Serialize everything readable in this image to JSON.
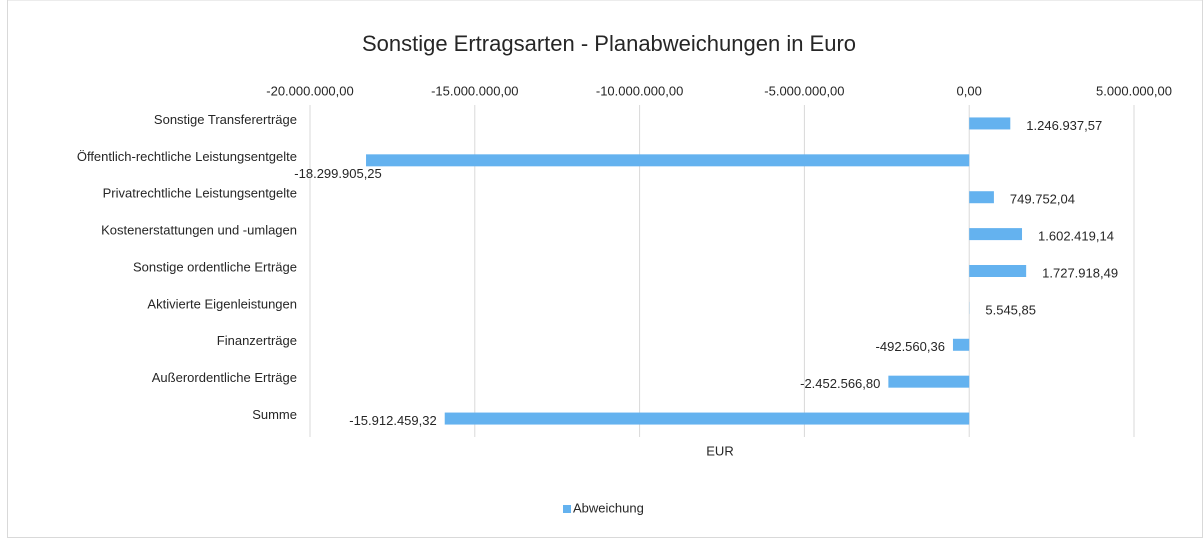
{
  "chart_data": {
    "type": "bar",
    "orientation": "horizontal",
    "title": "Sonstige Ertragsarten - Planabweichungen in Euro",
    "x_label": "EUR",
    "categories": [
      "Sonstige Transfererträge",
      "Öffentlich-rechtliche Leistungsentgelte",
      "Privatrechtliche Leistungsentgelte",
      "Kostenerstattungen und -umlagen",
      "Sonstige ordentliche Erträge",
      "Aktivierte Eigenleistungen",
      "Finanzerträge",
      "Außerordentliche Erträge",
      "Summe"
    ],
    "series": [
      {
        "name": "Abweichung",
        "color": "#64b2ef",
        "values": [
          1246937.57,
          -18299905.25,
          749752.04,
          1602419.14,
          1727918.49,
          5545.85,
          -492560.36,
          -2452566.8,
          -15912459.32
        ],
        "value_labels": [
          "1.246.937,57",
          "-18.299.905,25",
          "749.752,04",
          "1.602.419,14",
          "1.727.918,49",
          "5.545,85",
          "-492.560,36",
          "-2.452.566,80",
          "-15.912.459,32"
        ]
      }
    ],
    "xlim": [
      -20000000,
      5000000
    ],
    "xticks": [
      {
        "value": -20000000,
        "label": "-20.000.000,00"
      },
      {
        "value": -15000000,
        "label": "-15.000.000,00"
      },
      {
        "value": -10000000,
        "label": "-10.000.000,00"
      },
      {
        "value": -5000000,
        "label": "-5.000.000,00"
      },
      {
        "value": 0,
        "label": "0,00"
      },
      {
        "value": 5000000,
        "label": "5.000.000,00"
      }
    ],
    "grid": true,
    "legend": "bottom"
  }
}
